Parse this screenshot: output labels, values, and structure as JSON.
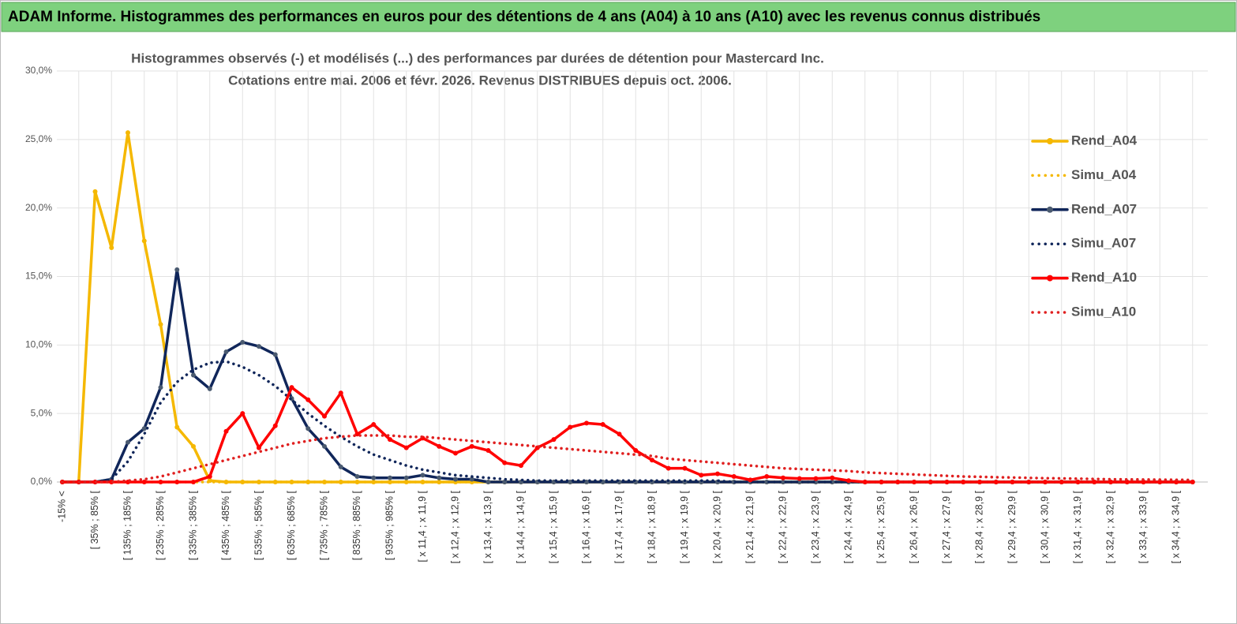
{
  "header": "ADAM Informe. Histogrammes des performances en euros pour des détentions de 4 ans (A04) à 10 ans (A10) avec les revenus connus distribués",
  "chart_data": {
    "type": "line",
    "title": "Histogrammes observés (-) et modélisés (...) des performances par durées de détention pour Mastercard Inc.",
    "subtitle": "Cotations entre mai. 2006 et févr. 2026. Revenus DISTRIBUES depuis oct. 2006.",
    "categories": [
      "-15% <",
      null,
      "[ 35% ; 85% [",
      null,
      "[ 135% ; 185% [",
      null,
      "[ 235% ; 285% [",
      null,
      "[ 335% ; 385% [",
      null,
      "[ 435% ; 485% [",
      null,
      "[ 535% ; 585% [",
      null,
      "[ 635% ; 685% [",
      null,
      "[ 735% ; 785% [",
      null,
      "[ 835% ; 885% [",
      null,
      "[ 935% ; 985% [",
      null,
      "[ x 11,4 ; x 11,9 [",
      null,
      "[ x 12,4 ; x 12,9 [",
      null,
      "[ x 13,4 ; x 13,9 [",
      null,
      "[ x 14,4 ; x 14,9 [",
      null,
      "[ x 15,4 ; x 15,9 [",
      null,
      "[ x 16,4 ; x 16,9 [",
      null,
      "[ x 17,4 ; x 17,9 [",
      null,
      "[ x 18,4 ; x 18,9 [",
      null,
      "[ x 19,4 ; x 19,9 [",
      null,
      "[ x 20,4 ; x 20,9 [",
      null,
      "[ x 21,4 ; x 21,9 [",
      null,
      "[ x 22,4 ; x 22,9 [",
      null,
      "[ x 23,4 ; x 23,9 [",
      null,
      "[ x 24,4 ; x 24,9 [",
      null,
      "[ x 25,4 ; x 25,9 [",
      null,
      "[ x 26,4 ; x 26,9 [",
      null,
      "[ x 27,4 ; x 27,9 [",
      null,
      "[ x 28,4 ; x 28,9 [",
      null,
      "[ x 29,4 ; x 29,9 [",
      null,
      "[ x 30,4 ; x 30,9 [",
      null,
      "[ x 31,4 ; x 31,9 [",
      null,
      "[ x 32,4 ; x 32,9 [",
      null,
      "[ x 33,4 ; x 33,9 [",
      null,
      "[ x 34,4 ; x 34,9 [",
      null
    ],
    "series": [
      {
        "name": "Rend_A04",
        "color": "#f5b800",
        "style": "solid",
        "marker_color": "#f5b800",
        "values": [
          0,
          0,
          21.2,
          17.1,
          25.5,
          17.6,
          11.5,
          4.0,
          2.6,
          0.1,
          0,
          0,
          0,
          0,
          0,
          0,
          0,
          0,
          0,
          0,
          0,
          0,
          0,
          0,
          0,
          0,
          0,
          0,
          0,
          0,
          0,
          0,
          0,
          0,
          0,
          0,
          0,
          0,
          0,
          0,
          0,
          0,
          0,
          0,
          0,
          0,
          0,
          0,
          0,
          0,
          0,
          0,
          0,
          0,
          0,
          0,
          0,
          0,
          0,
          0,
          0,
          0,
          0,
          0,
          0,
          0,
          0,
          0,
          0,
          0
        ]
      },
      {
        "name": "Simu_A04",
        "color": "#f5b800",
        "style": "dotted",
        "values": [
          0,
          0,
          0,
          0,
          0,
          0,
          0,
          0,
          0,
          0,
          0,
          0,
          0,
          0,
          0,
          0,
          0,
          0,
          0,
          0,
          0,
          0,
          0,
          0,
          0,
          0,
          0,
          0,
          0,
          0,
          0,
          0,
          0,
          0,
          0,
          0,
          0,
          0,
          0,
          0,
          0,
          0,
          0,
          0,
          0,
          0,
          0,
          0,
          0,
          0,
          0,
          0,
          0,
          0,
          0,
          0,
          0,
          0,
          0,
          0,
          0,
          0,
          0,
          0,
          0,
          0,
          0,
          0,
          0,
          0
        ]
      },
      {
        "name": "Rend_A07",
        "color": "#10265a",
        "style": "solid",
        "marker_color": "#4a5a70",
        "values": [
          0,
          0,
          0,
          0.2,
          2.9,
          3.9,
          6.9,
          15.5,
          7.8,
          6.8,
          9.5,
          10.2,
          9.9,
          9.3,
          6.1,
          3.9,
          2.6,
          1.1,
          0.4,
          0.3,
          0.3,
          0.3,
          0.5,
          0.3,
          0.2,
          0.2,
          0,
          0,
          0,
          0,
          0,
          0,
          0,
          0,
          0,
          0,
          0,
          0,
          0,
          0,
          0,
          0,
          0,
          0,
          0,
          0,
          0,
          0,
          0,
          0,
          0,
          0,
          0,
          0,
          0,
          0,
          0,
          0,
          0,
          0,
          0,
          0,
          0,
          0,
          0,
          0,
          0,
          0,
          0,
          0
        ]
      },
      {
        "name": "Simu_A07",
        "color": "#10265a",
        "style": "dotted",
        "values": [
          0,
          0,
          0,
          0.2,
          1.5,
          3.5,
          5.8,
          7.3,
          8.2,
          8.7,
          8.8,
          8.4,
          7.8,
          7.0,
          6.0,
          5.0,
          4.1,
          3.3,
          2.6,
          2.0,
          1.6,
          1.2,
          0.9,
          0.7,
          0.5,
          0.4,
          0.3,
          0.2,
          0.15,
          0.1,
          0.1,
          0.1,
          0.1,
          0.1,
          0.1,
          0.1,
          0.1,
          0.1,
          0.1,
          0.1,
          0.1,
          0,
          0,
          0,
          0,
          0,
          0,
          0,
          0,
          0,
          0,
          0,
          0,
          0,
          0,
          0,
          0,
          0,
          0,
          0,
          0,
          0,
          0,
          0,
          0,
          0,
          0,
          0,
          0,
          0
        ]
      },
      {
        "name": "Rend_A10",
        "color": "#ff0000",
        "style": "solid",
        "marker_color": "#ff0000",
        "values": [
          0,
          0,
          0,
          0,
          0,
          0,
          0,
          0,
          0,
          0.4,
          3.7,
          5.0,
          2.5,
          4.1,
          6.9,
          6.0,
          4.8,
          6.5,
          3.5,
          4.2,
          3.1,
          2.5,
          3.2,
          2.6,
          2.1,
          2.6,
          2.3,
          1.4,
          1.2,
          2.5,
          3.1,
          4.0,
          4.3,
          4.2,
          3.5,
          2.3,
          1.6,
          1.0,
          1.0,
          0.5,
          0.6,
          0.4,
          0.15,
          0.4,
          0.3,
          0.25,
          0.25,
          0.3,
          0.1,
          0,
          0,
          0,
          0,
          0,
          0,
          0,
          0,
          0,
          0,
          0,
          0,
          0,
          0,
          0,
          0,
          0,
          0,
          0,
          0,
          0
        ]
      },
      {
        "name": "Simu_A10",
        "color": "#e02020",
        "style": "dotted",
        "values": [
          0,
          0,
          0,
          0,
          0.1,
          0.2,
          0.4,
          0.7,
          1.0,
          1.3,
          1.6,
          1.9,
          2.2,
          2.5,
          2.8,
          3.0,
          3.2,
          3.3,
          3.4,
          3.4,
          3.4,
          3.3,
          3.3,
          3.2,
          3.1,
          3.0,
          2.9,
          2.8,
          2.7,
          2.6,
          2.5,
          2.4,
          2.3,
          2.2,
          2.1,
          2.0,
          1.9,
          1.7,
          1.6,
          1.5,
          1.4,
          1.3,
          1.2,
          1.1,
          1.0,
          0.95,
          0.9,
          0.85,
          0.8,
          0.7,
          0.65,
          0.6,
          0.55,
          0.5,
          0.45,
          0.4,
          0.38,
          0.35,
          0.33,
          0.3,
          0.28,
          0.26,
          0.24,
          0.22,
          0.2,
          0.19,
          0.18,
          0.17,
          0.16,
          0.15
        ]
      }
    ],
    "ylim": [
      0,
      30
    ],
    "yticks": [
      {
        "value": 0,
        "label": "0,0%"
      },
      {
        "value": 5,
        "label": "5,0%"
      },
      {
        "value": 10,
        "label": "10,0%"
      },
      {
        "value": 15,
        "label": "15,0%"
      },
      {
        "value": 20,
        "label": "20,0%"
      },
      {
        "value": 25,
        "label": "25,0%"
      },
      {
        "value": 30,
        "label": "30,0%"
      }
    ],
    "grid": true,
    "legend": "right"
  }
}
